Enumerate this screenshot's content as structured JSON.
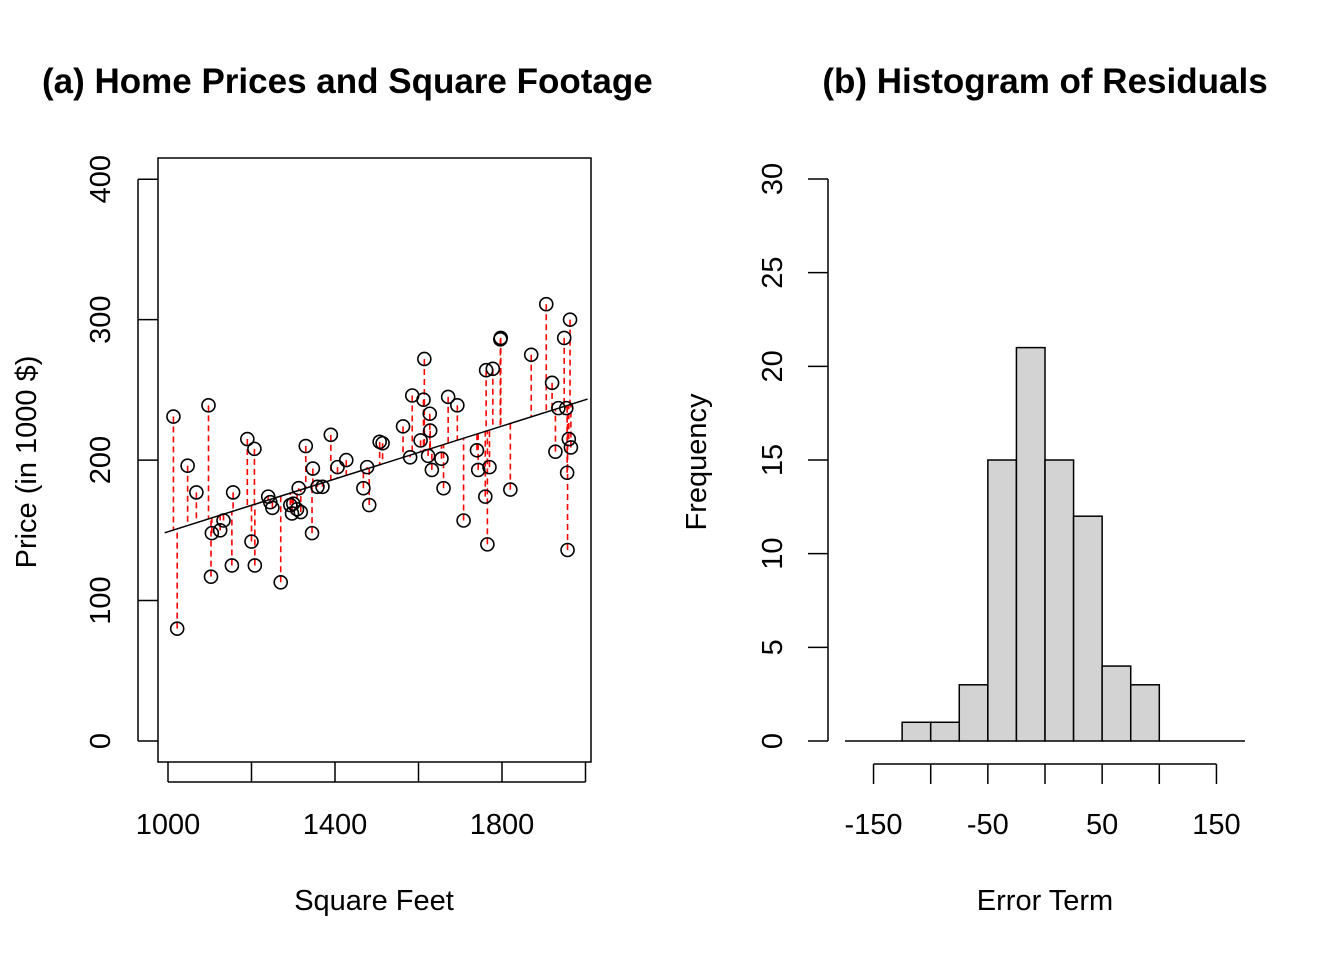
{
  "chart_data": [
    {
      "type": "scatter",
      "title": "(a) Home Prices and Square Footage",
      "xlabel": "Square Feet",
      "ylabel": "Price (in 1000 $)",
      "xlim": [
        1000,
        2000
      ],
      "ylim": [
        0,
        400
      ],
      "x_ticks": [
        1000,
        1400,
        1800
      ],
      "y_ticks": [
        0,
        100,
        200,
        300,
        400
      ],
      "grid": false,
      "regression_line": {
        "intercept": 55,
        "slope": 0.094
      },
      "residual_color": "#ff0000",
      "point_color": "#000000",
      "points": [
        [
          1013,
          231
        ],
        [
          1022,
          80
        ],
        [
          1047,
          196
        ],
        [
          1068,
          177
        ],
        [
          1097,
          239
        ],
        [
          1103,
          117
        ],
        [
          1105,
          148
        ],
        [
          1125,
          150
        ],
        [
          1133,
          157
        ],
        [
          1153,
          125
        ],
        [
          1156,
          177
        ],
        [
          1190,
          215
        ],
        [
          1200,
          142
        ],
        [
          1207,
          208
        ],
        [
          1208,
          125
        ],
        [
          1240,
          174
        ],
        [
          1245,
          170
        ],
        [
          1250,
          166
        ],
        [
          1270,
          113
        ],
        [
          1293,
          168
        ],
        [
          1297,
          162
        ],
        [
          1300,
          169
        ],
        [
          1309,
          165
        ],
        [
          1313,
          180
        ],
        [
          1318,
          163
        ],
        [
          1330,
          210
        ],
        [
          1345,
          148
        ],
        [
          1347,
          194
        ],
        [
          1358,
          181
        ],
        [
          1370,
          181
        ],
        [
          1390,
          218
        ],
        [
          1406,
          195
        ],
        [
          1427,
          200
        ],
        [
          1468,
          180
        ],
        [
          1477,
          195
        ],
        [
          1482,
          168
        ],
        [
          1507,
          213
        ],
        [
          1514,
          212
        ],
        [
          1563,
          224
        ],
        [
          1580,
          202
        ],
        [
          1585,
          246
        ],
        [
          1605,
          214
        ],
        [
          1612,
          243
        ],
        [
          1614,
          272
        ],
        [
          1623,
          203
        ],
        [
          1627,
          233
        ],
        [
          1628,
          221
        ],
        [
          1632,
          193
        ],
        [
          1655,
          201
        ],
        [
          1660,
          180
        ],
        [
          1671,
          245
        ],
        [
          1693,
          239
        ],
        [
          1708,
          157
        ],
        [
          1740,
          207
        ],
        [
          1743,
          193
        ],
        [
          1760,
          174
        ],
        [
          1762,
          264
        ],
        [
          1765,
          140
        ],
        [
          1770,
          195
        ],
        [
          1778,
          265
        ],
        [
          1796,
          286
        ],
        [
          1797,
          287
        ],
        [
          1820,
          179
        ],
        [
          1870,
          275
        ],
        [
          1906,
          311
        ],
        [
          1920,
          255
        ],
        [
          1928,
          206
        ],
        [
          1935,
          237
        ],
        [
          1949,
          287
        ],
        [
          1954,
          237
        ],
        [
          1956,
          191
        ],
        [
          1957,
          136
        ],
        [
          1960,
          215
        ],
        [
          1963,
          300
        ],
        [
          1965,
          209
        ]
      ]
    },
    {
      "type": "bar",
      "title": "(b) Histogram of Residuals",
      "xlabel": "Error Term",
      "ylabel": "Frequency",
      "xlim": [
        -175,
        175
      ],
      "ylim": [
        0,
        30
      ],
      "x_ticks": [
        -150,
        -100,
        -50,
        0,
        50,
        100,
        150
      ],
      "x_tick_labels": [
        "-150",
        "-50",
        "50",
        "150"
      ],
      "y_ticks": [
        0,
        5,
        10,
        15,
        20,
        25,
        30
      ],
      "grid": false,
      "bar_color": "#d3d3d3",
      "bins": [
        {
          "from": -175,
          "to": -125,
          "count": 0
        },
        {
          "from": -125,
          "to": -100,
          "count": 1
        },
        {
          "from": -100,
          "to": -75,
          "count": 1
        },
        {
          "from": -75,
          "to": -50,
          "count": 3
        },
        {
          "from": -50,
          "to": -25,
          "count": 15
        },
        {
          "from": -25,
          "to": 0,
          "count": 21
        },
        {
          "from": 0,
          "to": 25,
          "count": 15
        },
        {
          "from": 25,
          "to": 50,
          "count": 12
        },
        {
          "from": 50,
          "to": 75,
          "count": 4
        },
        {
          "from": 75,
          "to": 100,
          "count": 3
        },
        {
          "from": 100,
          "to": 175,
          "count": 0
        }
      ]
    }
  ]
}
